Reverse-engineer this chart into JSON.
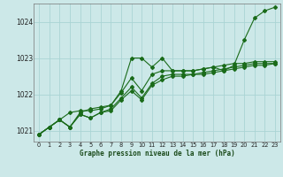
{
  "title": "Graphe pression niveau de la mer (hPa)",
  "bg_color": "#cce8e8",
  "grid_color": "#aad4d4",
  "line_color": "#1a6b1a",
  "xlim": [
    -0.5,
    23.5
  ],
  "ylim": [
    1020.7,
    1024.5
  ],
  "yticks": [
    1021,
    1022,
    1023,
    1024
  ],
  "xticks": [
    0,
    1,
    2,
    3,
    4,
    5,
    6,
    7,
    8,
    9,
    10,
    11,
    12,
    13,
    14,
    15,
    16,
    17,
    18,
    19,
    20,
    21,
    22,
    23
  ],
  "series": [
    [
      1020.9,
      1021.1,
      1021.3,
      1021.1,
      1021.5,
      1021.6,
      1021.65,
      1021.7,
      1022.1,
      1023.0,
      1023.0,
      1022.75,
      1023.0,
      1022.65,
      1022.65,
      1022.65,
      1022.7,
      1022.75,
      1022.65,
      1022.8,
      1023.5,
      1024.1,
      1024.3,
      1024.4
    ],
    [
      1020.9,
      1021.1,
      1021.3,
      1021.5,
      1021.55,
      1021.55,
      1021.6,
      1021.7,
      1022.05,
      1022.45,
      1022.1,
      1022.55,
      1022.65,
      1022.65,
      1022.65,
      1022.65,
      1022.7,
      1022.75,
      1022.8,
      1022.85,
      1022.85,
      1022.9,
      1022.9,
      1022.9
    ],
    [
      1020.9,
      1021.1,
      1021.3,
      1021.1,
      1021.45,
      1021.35,
      1021.5,
      1021.6,
      1021.9,
      1022.2,
      1021.9,
      1022.3,
      1022.5,
      1022.55,
      1022.55,
      1022.55,
      1022.6,
      1022.65,
      1022.7,
      1022.75,
      1022.8,
      1022.85,
      1022.85,
      1022.85
    ],
    [
      1020.9,
      1021.1,
      1021.3,
      1021.1,
      1021.45,
      1021.35,
      1021.5,
      1021.55,
      1021.85,
      1022.1,
      1021.85,
      1022.25,
      1022.4,
      1022.5,
      1022.5,
      1022.55,
      1022.55,
      1022.6,
      1022.65,
      1022.7,
      1022.75,
      1022.8,
      1022.8,
      1022.85
    ]
  ]
}
